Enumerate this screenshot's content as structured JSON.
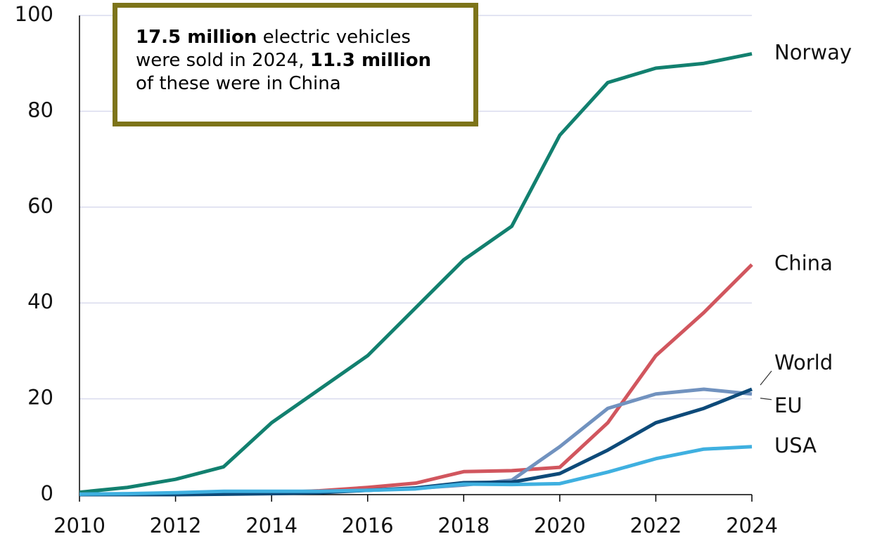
{
  "chart_data": {
    "type": "line",
    "annotation": [
      [
        {
          "text": "17.5 million",
          "bold": true
        },
        {
          "text": " electric vehicles",
          "bold": false
        }
      ],
      [
        {
          "text": "were sold in 2024, ",
          "bold": false
        },
        {
          "text": "11.3 million",
          "bold": true
        }
      ],
      [
        {
          "text": "of these were in China",
          "bold": false
        }
      ]
    ],
    "x": [
      2010,
      2011,
      2012,
      2013,
      2014,
      2015,
      2016,
      2017,
      2018,
      2019,
      2020,
      2021,
      2022,
      2023,
      2024
    ],
    "series": [
      {
        "name": "Norway",
        "color": "#12806f",
        "values": [
          0.5,
          1.5,
          3.2,
          5.8,
          15,
          22,
          29,
          39,
          49,
          56,
          75,
          86,
          89,
          90,
          92
        ]
      },
      {
        "name": "China",
        "color": "#d1565e",
        "values": [
          0.1,
          0.1,
          0.1,
          0.2,
          0.4,
          0.8,
          1.5,
          2.4,
          4.8,
          5,
          5.7,
          15,
          29,
          38,
          48
        ]
      },
      {
        "name": "EU",
        "color": "#7192bf",
        "values": [
          0,
          0.1,
          0.2,
          0.4,
          0.5,
          0.6,
          0.9,
          1.3,
          2,
          3,
          10,
          18,
          21,
          22,
          21
        ]
      },
      {
        "name": "World",
        "color": "#0d4a79",
        "values": [
          0,
          0,
          0,
          0.1,
          0.2,
          0.4,
          0.9,
          1.4,
          2.5,
          2.6,
          4.4,
          9.3,
          15,
          18,
          22
        ]
      },
      {
        "name": "USA",
        "color": "#3fb0e0",
        "values": [
          0.1,
          0.2,
          0.4,
          0.7,
          0.7,
          0.7,
          0.9,
          1.2,
          2.2,
          2.1,
          2.3,
          4.7,
          7.5,
          9.5,
          10
        ]
      }
    ],
    "xlim": [
      2010,
      2024
    ],
    "xticks": [
      2010,
      2012,
      2014,
      2016,
      2018,
      2020,
      2022,
      2024
    ],
    "ylim": [
      0,
      100
    ],
    "yticks": [
      0,
      20,
      40,
      60,
      80,
      100
    ],
    "grid": true
  }
}
